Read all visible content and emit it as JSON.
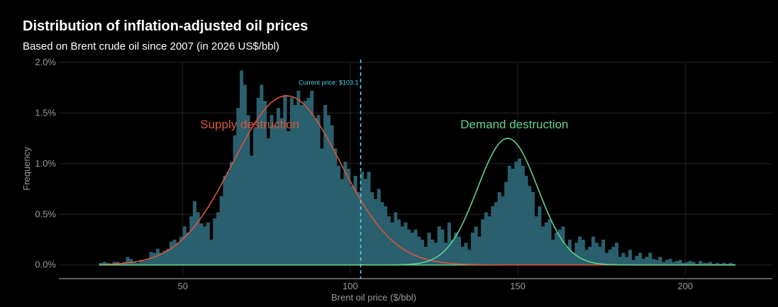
{
  "title": "Distribution of inflation-adjusted oil prices",
  "subtitle": "Based on Brent crude oil since 2007 (in 2026 US$/bbl)",
  "colors": {
    "background": "#000000",
    "bars": "#2a5f6e",
    "supply_curve": "#d9573b",
    "demand_curve": "#63d18f",
    "current_line": "#4fd0ea",
    "grid": "#262626",
    "axis_text": "#9a9a9a"
  },
  "chart_data": {
    "type": "bar",
    "subtype": "histogram with fitted normal curves",
    "xlabel": "Brent oil price ($/bbl)",
    "ylabel": "Frequency",
    "xlim": [
      13,
      226
    ],
    "ylim": [
      -0.001,
      0.02
    ],
    "x_ticks": [
      50,
      100,
      150,
      200
    ],
    "x_tick_labels": [
      "50",
      "100",
      "150",
      "200"
    ],
    "y_ticks": [
      0,
      0.005,
      0.01,
      0.015,
      0.02
    ],
    "y_tick_labels": [
      "0.0%",
      "0.5%",
      "1.0%",
      "1.5%",
      "2.0%"
    ],
    "grid": true,
    "bin_start": 25,
    "bin_width": 1,
    "bin_values": [
      0.0002,
      0.0003,
      0.0002,
      0.0001,
      0.0003,
      0.0003,
      0.0001,
      0.0003,
      0.0008,
      0.0006,
      0.0003,
      0.0002,
      0.0005,
      0.0004,
      0.0006,
      0.0013,
      0.0012,
      0.0016,
      0.0012,
      0.0014,
      0.0016,
      0.0023,
      0.0025,
      0.0022,
      0.0028,
      0.0038,
      0.0032,
      0.0048,
      0.0063,
      0.0052,
      0.0041,
      0.0038,
      0.0042,
      0.0025,
      0.0046,
      0.0052,
      0.0068,
      0.0088,
      0.0092,
      0.0102,
      0.0128,
      0.0155,
      0.0192,
      0.0178,
      0.0148,
      0.0108,
      0.0135,
      0.0165,
      0.0178,
      0.0162,
      0.0125,
      0.0148,
      0.0138,
      0.0155,
      0.0145,
      0.0168,
      0.0132,
      0.0165,
      0.0158,
      0.0172,
      0.0158,
      0.0162,
      0.0165,
      0.0172,
      0.0145,
      0.0148,
      0.0115,
      0.0158,
      0.0148,
      0.0138,
      0.0115,
      0.0098,
      0.0085,
      0.0102,
      0.0095,
      0.0078,
      0.0088,
      0.0072,
      0.0092,
      0.0085,
      0.0092,
      0.0072,
      0.0065,
      0.0075,
      0.0062,
      0.0058,
      0.0048,
      0.0042,
      0.0052,
      0.0045,
      0.0038,
      0.0042,
      0.0035,
      0.0032,
      0.0035,
      0.0028,
      0.0025,
      0.0018,
      0.0032,
      0.0025,
      0.0022,
      0.0038,
      0.0035,
      0.0022,
      0.0042,
      0.0025,
      0.0032,
      0.0028,
      0.0018,
      0.0022,
      0.0015,
      0.0032,
      0.0038,
      0.0028,
      0.0045,
      0.0052,
      0.0048,
      0.0058,
      0.0062,
      0.0072,
      0.0068,
      0.0082,
      0.0098,
      0.0095,
      0.0102,
      0.0105,
      0.0098,
      0.0088,
      0.0078,
      0.0072,
      0.0048,
      0.0058,
      0.0038,
      0.0042,
      0.0045,
      0.0025,
      0.0032,
      0.0035,
      0.0038,
      0.0018,
      0.0025,
      0.0012,
      0.0022,
      0.0028,
      0.0025,
      0.0015,
      0.0018,
      0.0028,
      0.0022,
      0.0018,
      0.0025,
      0.0012,
      0.0015,
      0.0018,
      0.0022,
      0.0008,
      0.0012,
      0.0008,
      0.0015,
      0.0005,
      0.0009,
      0.0012,
      0.0006,
      0.0008,
      0.0012,
      0.0006,
      0.0005,
      0.0008,
      0.0003,
      0.0005,
      0.0006,
      0.0003,
      0.0004,
      0.0005,
      0.0002,
      0.0003,
      0.0004,
      0.0003,
      0.0001,
      0.0004,
      0.0002,
      0.0002,
      0.0003,
      0.0001,
      0.0002,
      0.0001,
      0.0002,
      0.0001,
      0.0002,
      0.0001
    ],
    "curves": [
      {
        "name": "Supply destruction",
        "mean": 81,
        "sd": 16,
        "peak": 0.0167
      },
      {
        "name": "Demand destruction",
        "mean": 147,
        "sd": 9,
        "peak": 0.0125
      }
    ],
    "current_price": {
      "value": 103.1,
      "label": "Current price: $103.1"
    },
    "annotations": [
      {
        "text": "Supply destruction",
        "x": 70,
        "y": 0.0135
      },
      {
        "text": "Demand destruction",
        "x": 149,
        "y": 0.0135
      }
    ]
  }
}
